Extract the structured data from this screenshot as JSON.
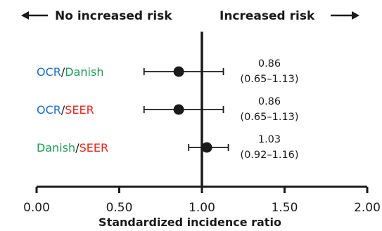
{
  "header": {
    "left_text": "No increased risk",
    "right_text": "Increased risk"
  },
  "colors": {
    "OCR": "#1a6fc4",
    "Danish": "#1e9a55",
    "SEER": "#e8231a",
    "ink": "#1a1a1a"
  },
  "chart_data": {
    "type": "forest",
    "xlabel": "Standardized incidence ratio",
    "xlim": [
      0,
      2
    ],
    "xticks": [
      "0.00",
      "0.50",
      "1.00",
      "1.50",
      "2.00"
    ],
    "reference_line": 1.0,
    "rows": [
      {
        "label_parts": [
          {
            "text": "OCR",
            "color_key": "OCR"
          },
          {
            "text": "/",
            "color_key": "ink"
          },
          {
            "text": "Danish",
            "color_key": "Danish"
          }
        ],
        "estimate": 0.86,
        "lower": 0.65,
        "upper": 1.13,
        "value_text": "0.86",
        "ci_text": "(0.65–1.13)"
      },
      {
        "label_parts": [
          {
            "text": "OCR",
            "color_key": "OCR"
          },
          {
            "text": "/",
            "color_key": "ink"
          },
          {
            "text": "SEER",
            "color_key": "SEER"
          }
        ],
        "estimate": 0.86,
        "lower": 0.65,
        "upper": 1.13,
        "value_text": "0.86",
        "ci_text": "(0.65–1.13)"
      },
      {
        "label_parts": [
          {
            "text": "Danish",
            "color_key": "Danish"
          },
          {
            "text": "/",
            "color_key": "ink"
          },
          {
            "text": "SEER",
            "color_key": "SEER"
          }
        ],
        "estimate": 1.03,
        "lower": 0.92,
        "upper": 1.16,
        "value_text": "1.03",
        "ci_text": "(0.92–1.16)"
      }
    ]
  }
}
